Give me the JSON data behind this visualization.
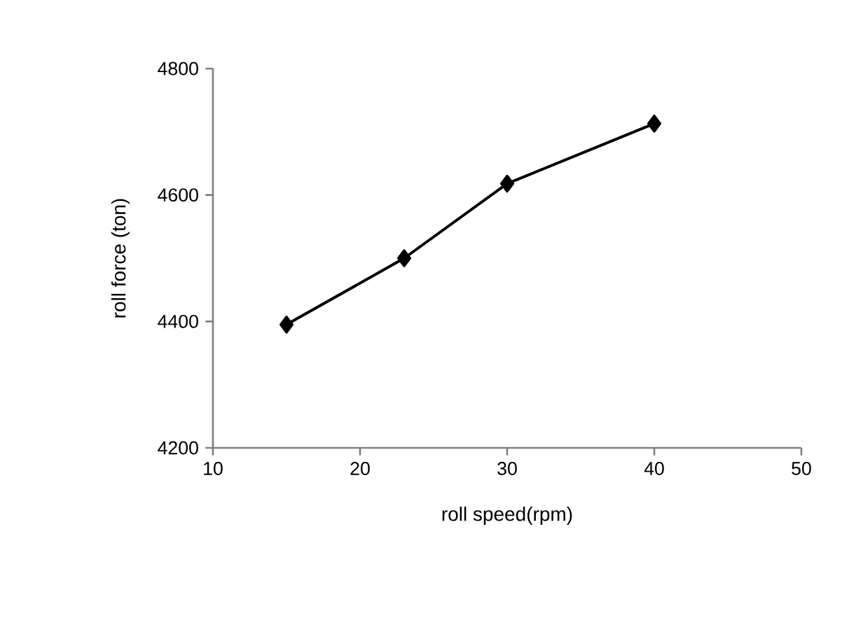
{
  "chart_data": {
    "type": "line",
    "xlabel": "roll speed(rpm)",
    "ylabel": "roll force (ton)",
    "x": [
      15,
      23,
      30,
      40
    ],
    "series": [
      {
        "color": "#000000",
        "values": [
          4395,
          4500,
          4618,
          4713
        ]
      }
    ],
    "xlim": [
      10,
      50
    ],
    "xticks": [
      10,
      20,
      30,
      40,
      50
    ],
    "ylim": [
      4200,
      4800
    ],
    "yticks": [
      4200,
      4400,
      4600,
      4800
    ],
    "marker": "diamond",
    "line_style": "solid"
  }
}
